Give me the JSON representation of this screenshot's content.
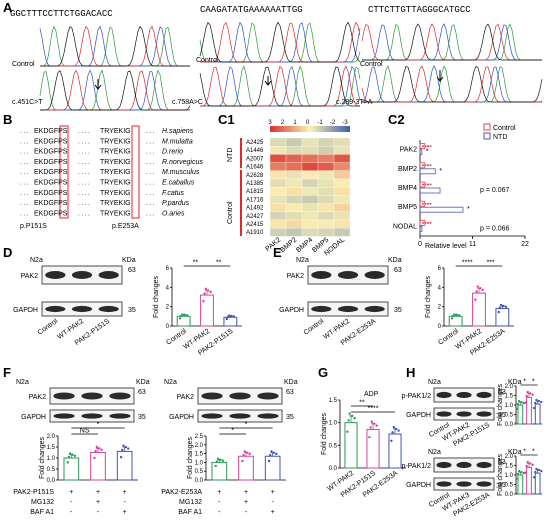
{
  "panel_labels": [
    "A",
    "B",
    "C1",
    "C2",
    "D",
    "E",
    "F",
    "G",
    "H"
  ],
  "A": {
    "seqs": [
      "GGCTTTCCTTCTGGACACC",
      "CAAGATATGAAAAAATTGG",
      "CTTCTTGTTAGGGCATGCC"
    ],
    "control_label": "Control",
    "mutations": [
      "c.451C>T",
      "c.758A>C",
      "c.289-3T>A"
    ]
  },
  "B": {
    "left_seq": "EKDGFPS",
    "right_seq": "TRYEKIG",
    "species": [
      "H.sapiens",
      "M.mulatta",
      "D.rerio",
      "R.norvegicus",
      "M.musculus",
      "E.caballus",
      "F.catus",
      "P.pardus",
      "O.aries"
    ],
    "sites": [
      "p.P151S",
      "p.E253A"
    ]
  },
  "C1": {
    "scale_ticks": [
      "3",
      "2",
      "1",
      "0",
      "-1",
      "-2",
      "-3"
    ],
    "samples": [
      "A2425",
      "A1446",
      "A2007",
      "A1646",
      "A2628",
      "A1385",
      "A1815",
      "A1716",
      "A1492",
      "A2427",
      "A2415",
      "A1910"
    ],
    "genes": [
      "PAK2",
      "BMP2",
      "BMP4",
      "BMP5",
      "NODAL"
    ],
    "group_labels": [
      "NTD",
      "Control"
    ],
    "values": [
      [
        -0.5,
        -0.8,
        -0.3,
        -0.6,
        -0.4
      ],
      [
        -0.2,
        -0.5,
        -0.4,
        -0.7,
        -0.3
      ],
      [
        2.5,
        2.2,
        2.0,
        1.8,
        2.4
      ],
      [
        1.8,
        2.0,
        2.6,
        2.3,
        1.6
      ],
      [
        0.2,
        -0.3,
        0.1,
        -0.2,
        0.6
      ],
      [
        -0.4,
        -0.2,
        -0.6,
        -0.3,
        -0.1
      ],
      [
        0.1,
        0.3,
        -0.2,
        -0.4,
        0.3
      ],
      [
        -0.3,
        -0.6,
        -0.8,
        -0.5,
        -0.2
      ],
      [
        0.3,
        0.1,
        -0.3,
        0.2,
        0.5
      ],
      [
        -0.6,
        -0.4,
        -0.2,
        -0.5,
        -0.3
      ],
      [
        0.2,
        0.4,
        0.1,
        -0.1,
        0.2
      ],
      [
        -0.7,
        -0.9,
        -0.5,
        -0.6,
        -0.8
      ]
    ]
  },
  "C2": {
    "legend": [
      "Control",
      "NTD"
    ],
    "genes": [
      "PAK2",
      "BMP2",
      "BMP4",
      "BMP5",
      "NODAL"
    ],
    "xlabel": "Relative level",
    "xticks": [
      "0",
      "11",
      "22"
    ],
    "xlim": [
      0,
      22
    ],
    "control": [
      1.0,
      1.0,
      1.0,
      1.0,
      1.0
    ],
    "ntd": [
      0.4,
      3.2,
      4.2,
      9.0,
      0.4
    ],
    "annotations": [
      "*",
      "*",
      "p = 0.067",
      "*",
      "p = 0.066"
    ]
  },
  "D": {
    "cell": "N2a",
    "kda": "KDa",
    "bands": [
      "PAK2",
      "GAPDH"
    ],
    "mw": [
      "63",
      "35"
    ],
    "lanes": [
      "Control",
      "WT-PAK2",
      "PAK2-P151S"
    ],
    "ylabel": "Fold changes",
    "yticks": [
      "0",
      "2",
      "4",
      "6"
    ],
    "values": [
      1.0,
      3.2,
      0.9
    ],
    "sig": [
      "**",
      "**"
    ]
  },
  "E": {
    "cell": "N2a",
    "kda": "KDa",
    "bands": [
      "PAK2",
      "GAPDH"
    ],
    "mw": [
      "63",
      "35"
    ],
    "lanes": [
      "Control",
      "WT-PAK2",
      "PAK2-E253A"
    ],
    "ylabel": "Fold changes",
    "yticks": [
      "0",
      "2",
      "4",
      "6"
    ],
    "values": [
      1.0,
      3.4,
      1.8
    ],
    "sig": [
      "****",
      "***"
    ]
  },
  "F": {
    "cell": "N2a",
    "kda": "KDa",
    "bands": [
      "PAK2",
      "GAPDH"
    ],
    "mw": [
      "63",
      "35"
    ],
    "ylabel": "Fold changes",
    "left": {
      "rows": [
        "PAK2-P151S",
        "MG132",
        "BAF A1"
      ],
      "signs": [
        [
          "+",
          "+",
          "+"
        ],
        [
          "-",
          "+",
          "-"
        ],
        [
          "-",
          "-",
          "+"
        ]
      ],
      "values": [
        1.0,
        1.25,
        1.3
      ],
      "yticks": [
        "0.0",
        "0.5",
        "1.0",
        "1.5",
        "2.0"
      ],
      "sig": [
        "NS",
        "*"
      ]
    },
    "right": {
      "rows": [
        "PAK2-E253A",
        "MG132",
        "BAF A1"
      ],
      "signs": [
        [
          "+",
          "+",
          "+"
        ],
        [
          "-",
          "+",
          "-"
        ],
        [
          "-",
          "-",
          "+"
        ]
      ],
      "values": [
        1.0,
        1.35,
        1.35
      ],
      "yticks": [
        "0.0",
        "0.5",
        "1.0",
        "1.5",
        "2.0",
        "2.5"
      ],
      "sig": [
        "*",
        "*"
      ]
    }
  },
  "G": {
    "title": "ADP",
    "ylabel": "Fold changes",
    "yticks": [
      "0.0",
      "0.5",
      "1.0",
      "1.5"
    ],
    "lanes": [
      "WT-PAK2",
      "PAK2-P151S",
      "PAK2-E253A"
    ],
    "values": [
      1.0,
      0.85,
      0.75
    ],
    "sig": [
      "**",
      "****"
    ]
  },
  "H": {
    "cell": "N2a",
    "kda": "KDa",
    "bands": [
      "p-PAK1/2",
      "GAPDH"
    ],
    "mw": [
      "63",
      "35"
    ],
    "ylabel": "Fold changes",
    "top": {
      "lanes": [
        "Control",
        "WT-PAK2",
        "PAK2-P151S"
      ],
      "values": [
        1.0,
        1.4,
        1.05
      ],
      "yticks": [
        "0.0",
        "0.5",
        "1.0",
        "1.5",
        "2.0"
      ],
      "sig": [
        "*",
        "*"
      ]
    },
    "bottom": {
      "lanes": [
        "Control",
        "WT-PAK3",
        "PAK2-E253A"
      ],
      "values": [
        1.0,
        1.4,
        1.1
      ],
      "yticks": [
        "0.0",
        "0.5",
        "1.0",
        "1.5",
        "2.0"
      ],
      "sig": [
        "*",
        "*"
      ]
    }
  },
  "colors": {
    "control": "#e0435a",
    "ntd": "#4a57b8",
    "green": "#2a9a57",
    "magenta": "#d0459f",
    "blue": "#3f55b3"
  }
}
